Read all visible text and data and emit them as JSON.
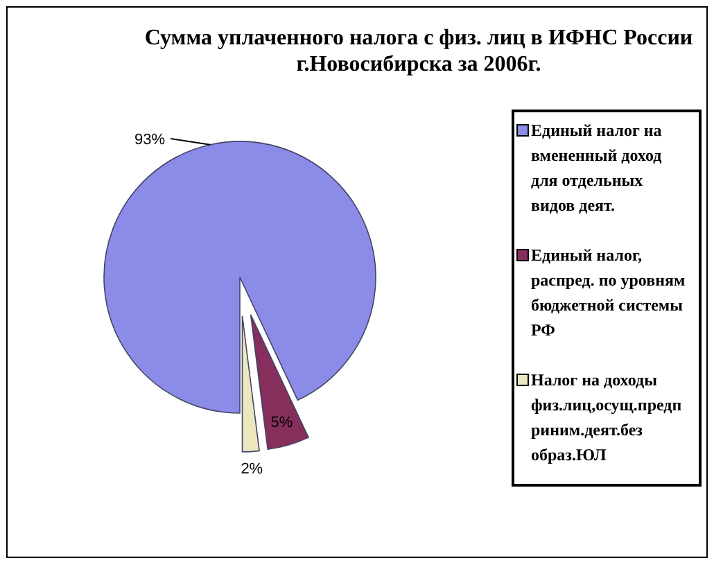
{
  "chart_data": {
    "type": "pie",
    "title": "Сумма уплаченного налога с физ. лиц в ИФНС России г.Новосибирска за 2006г.",
    "categories": [
      "Единый налог на вмененный доход для отдельных видов деят.",
      "Единый налог, распред. по уровням бюджетной системы РФ",
      "Налог на доходы физ.лиц,осущ.предприним.деят.без образ.ЮЛ"
    ],
    "values": [
      93,
      5,
      2
    ],
    "colors": [
      "#8b8be8",
      "#862f5d",
      "#ebe8c0"
    ],
    "value_labels": [
      "93%",
      "5%",
      "2%"
    ],
    "legend": "right"
  }
}
